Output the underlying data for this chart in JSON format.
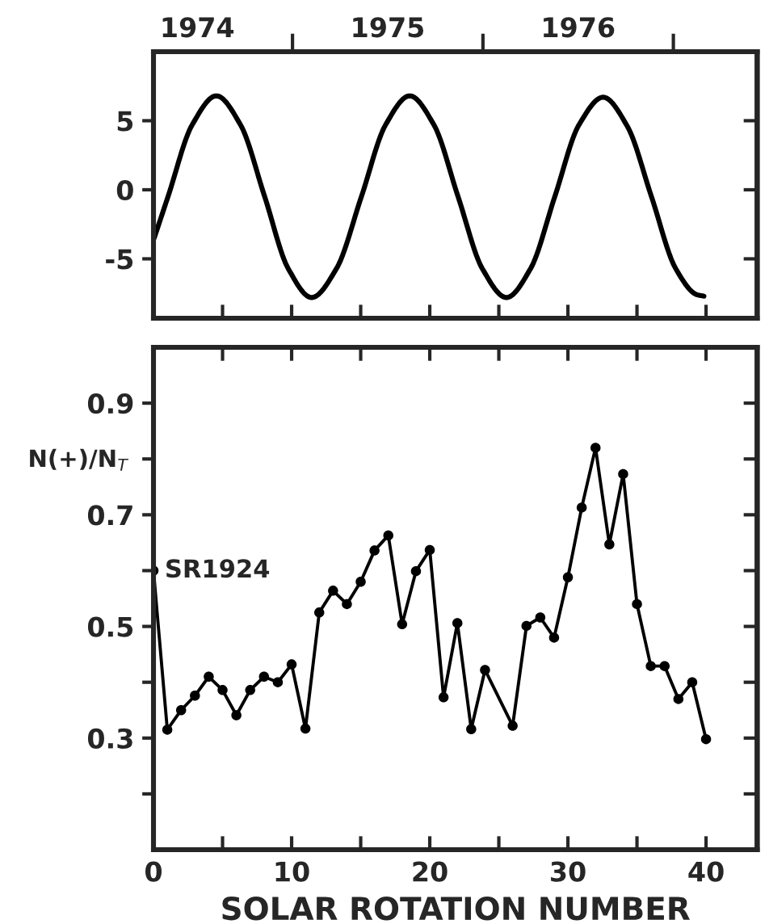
{
  "chart_data": [
    {
      "type": "line",
      "marker": "none",
      "grid": false,
      "tick_labels": "y",
      "x": [
        0.05,
        1.05,
        2.8,
        4.55,
        6.3,
        8.05,
        9.75,
        11.45,
        13.25,
        15.05,
        16.8,
        18.55,
        20.3,
        22.05,
        23.8,
        25.55,
        27.3,
        29.05,
        30.8,
        32.55,
        34.3,
        36.05,
        37.8,
        39.35,
        39.85
      ],
      "values": [
        -3.5,
        -0.5,
        4.7,
        6.8,
        4.7,
        -0.5,
        -5.7,
        -7.8,
        -5.7,
        -0.5,
        4.7,
        6.8,
        4.7,
        -0.5,
        -5.7,
        -7.8,
        -5.7,
        -0.5,
        4.7,
        6.7,
        4.6,
        -0.5,
        -5.7,
        -7.6,
        -7.7
      ],
      "color": "#000000",
      "xlim": [
        0,
        43.7
      ],
      "ylim": [
        -9.3,
        10
      ],
      "yticks": [
        -5,
        0,
        5
      ],
      "xticks": [
        {
          "value": 5,
          "label": null
        },
        {
          "value": 10,
          "label": null
        },
        {
          "value": 15,
          "label": null
        },
        {
          "value": 20,
          "label": null
        },
        {
          "value": 25,
          "label": null
        },
        {
          "value": 30,
          "label": null
        },
        {
          "value": 35,
          "label": null
        },
        {
          "value": 40,
          "label": null
        }
      ],
      "x2lim": [
        1974.27,
        1977.44
      ],
      "x2ticks": [
        {
          "value": 1974.5,
          "label": "1974"
        },
        {
          "value": 1975,
          "label": null
        },
        {
          "value": 1975.5,
          "label": "1975"
        },
        {
          "value": 1976,
          "label": null
        },
        {
          "value": 1976.5,
          "label": "1976"
        },
        {
          "value": 1977,
          "label": null
        }
      ]
    },
    {
      "type": "line",
      "marker": "circle",
      "grid": false,
      "xlabel": "SOLAR ROTATION NUMBER",
      "ylabel": "N(+)/N$_{T}$",
      "series": [
        {
          "color": "#000000",
          "x": [
            0,
            1,
            2,
            3,
            4,
            5,
            6,
            7,
            8,
            9,
            10,
            11,
            12,
            13,
            14,
            15,
            16,
            17,
            18,
            19,
            20,
            21,
            22,
            23,
            24,
            26,
            27,
            28,
            29,
            30,
            31,
            32,
            33,
            34,
            35,
            36,
            37,
            38,
            39,
            40
          ],
          "values": [
            0.6,
            0.315,
            0.35,
            0.376,
            0.41,
            0.386,
            0.341,
            0.386,
            0.41,
            0.4,
            0.432,
            0.317,
            0.525,
            0.564,
            0.54,
            0.58,
            0.636,
            0.663,
            0.504,
            0.599,
            0.637,
            0.373,
            0.506,
            0.316,
            0.422,
            0.322,
            0.501,
            0.516,
            0.48,
            0.588,
            0.713,
            0.82,
            0.647,
            0.773,
            0.54,
            0.429,
            0.429,
            0.37,
            0.4,
            0.298
          ]
        }
      ],
      "xlim": [
        0,
        43.7
      ],
      "ylim": [
        0.1,
        1.0
      ],
      "xticks": [
        0,
        {
          "value": 5,
          "label": null
        },
        10,
        {
          "value": 15,
          "label": null
        },
        20,
        {
          "value": 25,
          "label": null
        },
        30,
        {
          "value": 35,
          "label": null
        },
        40
      ],
      "yticks": [
        {
          "value": 0.2,
          "label": null
        },
        {
          "value": 0.3,
          "label": "0.3"
        },
        {
          "value": 0.4,
          "label": null
        },
        {
          "value": 0.5,
          "label": "0.5"
        },
        {
          "value": 0.6,
          "label": null
        },
        {
          "value": 0.7,
          "label": "0.7"
        },
        {
          "value": 0.8,
          "label": null
        },
        {
          "value": 0.9,
          "label": "0.9"
        }
      ],
      "annotations": [
        {
          "text": "SR1924",
          "x": 0,
          "y": 0.6
        }
      ]
    }
  ]
}
